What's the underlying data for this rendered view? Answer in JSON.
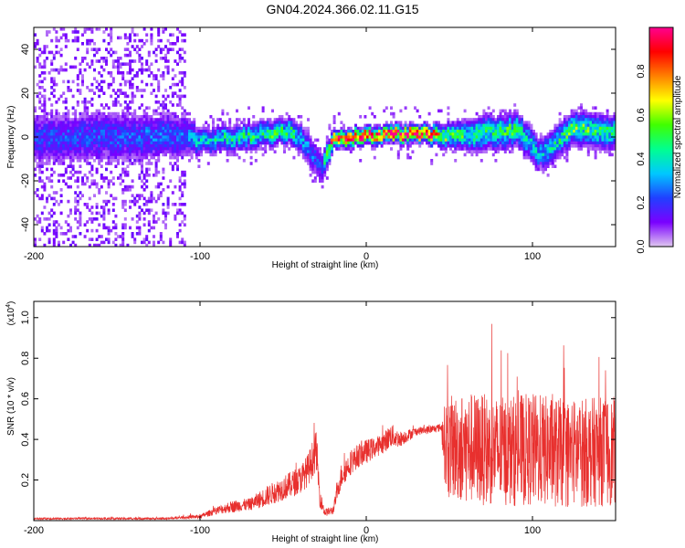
{
  "figure": {
    "title": "GN04.2024.366.02.11.G15"
  },
  "chart_data": [
    {
      "type": "heatmap",
      "xlabel": "Height of straight line (km)",
      "ylabel": "Frequency (Hz)",
      "xlim": [
        -200,
        150
      ],
      "ylim": [
        -50,
        50
      ],
      "xticks": [
        -200,
        -100,
        0,
        100
      ],
      "yticks": [
        -40,
        -20,
        0,
        20,
        40
      ],
      "colorbar": {
        "label": "Normalized spectral amplitude",
        "range": [
          0,
          1
        ],
        "ticks": [
          0.0,
          0.2,
          0.4,
          0.6,
          0.8
        ],
        "tick_labels": [
          "0.0",
          "0.2",
          "0.4",
          "0.6",
          "0.8"
        ],
        "colormap": [
          "#e0c8f0",
          "#7a00ff",
          "#2040ff",
          "#00c8ff",
          "#00ff90",
          "#40ff00",
          "#ffff00",
          "#ff8000",
          "#ff0000",
          "#ff0090"
        ]
      },
      "ridge": [
        {
          "x": -200,
          "center": 0,
          "half_width": 6,
          "amplitude": 0.2
        },
        {
          "x": -150,
          "center": 1,
          "half_width": 6,
          "amplitude": 0.22
        },
        {
          "x": -110,
          "center": 1,
          "half_width": 5,
          "amplitude": 0.25
        },
        {
          "x": -100,
          "center": -1,
          "half_width": 3,
          "amplitude": 0.35
        },
        {
          "x": -80,
          "center": 0,
          "half_width": 3,
          "amplitude": 0.4
        },
        {
          "x": -60,
          "center": 2,
          "half_width": 3,
          "amplitude": 0.45
        },
        {
          "x": -45,
          "center": 4,
          "half_width": 3,
          "amplitude": 0.45
        },
        {
          "x": -35,
          "center": -5,
          "half_width": 4,
          "amplitude": 0.25
        },
        {
          "x": -28,
          "center": -14,
          "half_width": 4,
          "amplitude": 0.2
        },
        {
          "x": -20,
          "center": 0,
          "half_width": 2,
          "amplitude": 0.85
        },
        {
          "x": 0,
          "center": 1,
          "half_width": 2,
          "amplitude": 0.9
        },
        {
          "x": 20,
          "center": 2,
          "half_width": 2,
          "amplitude": 0.95
        },
        {
          "x": 35,
          "center": 2,
          "half_width": 2,
          "amplitude": 0.9
        },
        {
          "x": 50,
          "center": 1,
          "half_width": 3,
          "amplitude": 0.45
        },
        {
          "x": 70,
          "center": 2,
          "half_width": 4,
          "amplitude": 0.45
        },
        {
          "x": 90,
          "center": 4,
          "half_width": 4,
          "amplitude": 0.45
        },
        {
          "x": 105,
          "center": -8,
          "half_width": 4,
          "amplitude": 0.3
        },
        {
          "x": 125,
          "center": 5,
          "half_width": 4,
          "amplitude": 0.5
        },
        {
          "x": 150,
          "center": 2,
          "half_width": 4,
          "amplitude": 0.4
        }
      ]
    },
    {
      "type": "line",
      "xlabel": "Height of straight line (km)",
      "ylabel": "SNR (10 * v/v)",
      "yscale_label": "(x10",
      "yscale_exponent": "4",
      "yscale_close": ")",
      "xlim": [
        -200,
        150
      ],
      "ylim": [
        0,
        1.08
      ],
      "xticks": [
        -200,
        -100,
        0,
        100
      ],
      "yticks": [
        0.2,
        0.4,
        0.6,
        0.8,
        1.0
      ],
      "series": [
        {
          "color": "#e8302e",
          "x": [
            -200,
            -150,
            -120,
            -100,
            -90,
            -80,
            -70,
            -60,
            -50,
            -40,
            -35,
            -30,
            -28,
            -25,
            -20,
            -15,
            -10,
            -5,
            0,
            5,
            10,
            15,
            20,
            30,
            40,
            45,
            48,
            60,
            80,
            100,
            120,
            140,
            150
          ],
          "y": [
            0.01,
            0.01,
            0.01,
            0.02,
            0.05,
            0.07,
            0.08,
            0.12,
            0.16,
            0.2,
            0.25,
            0.35,
            0.12,
            0.04,
            0.05,
            0.22,
            0.28,
            0.32,
            0.34,
            0.36,
            0.38,
            0.42,
            0.4,
            0.44,
            0.45,
            0.46,
            0.36,
            0.36,
            0.34,
            0.35,
            0.33,
            0.34,
            0.34
          ],
          "spread": [
            0.005,
            0.005,
            0.005,
            0.01,
            0.02,
            0.03,
            0.03,
            0.05,
            0.06,
            0.07,
            0.08,
            0.1,
            0.05,
            0.02,
            0.02,
            0.06,
            0.06,
            0.06,
            0.06,
            0.05,
            0.05,
            0.06,
            0.04,
            0.02,
            0.02,
            0.02,
            0.25,
            0.28,
            0.27,
            0.28,
            0.27,
            0.27,
            0.27
          ]
        }
      ]
    }
  ]
}
